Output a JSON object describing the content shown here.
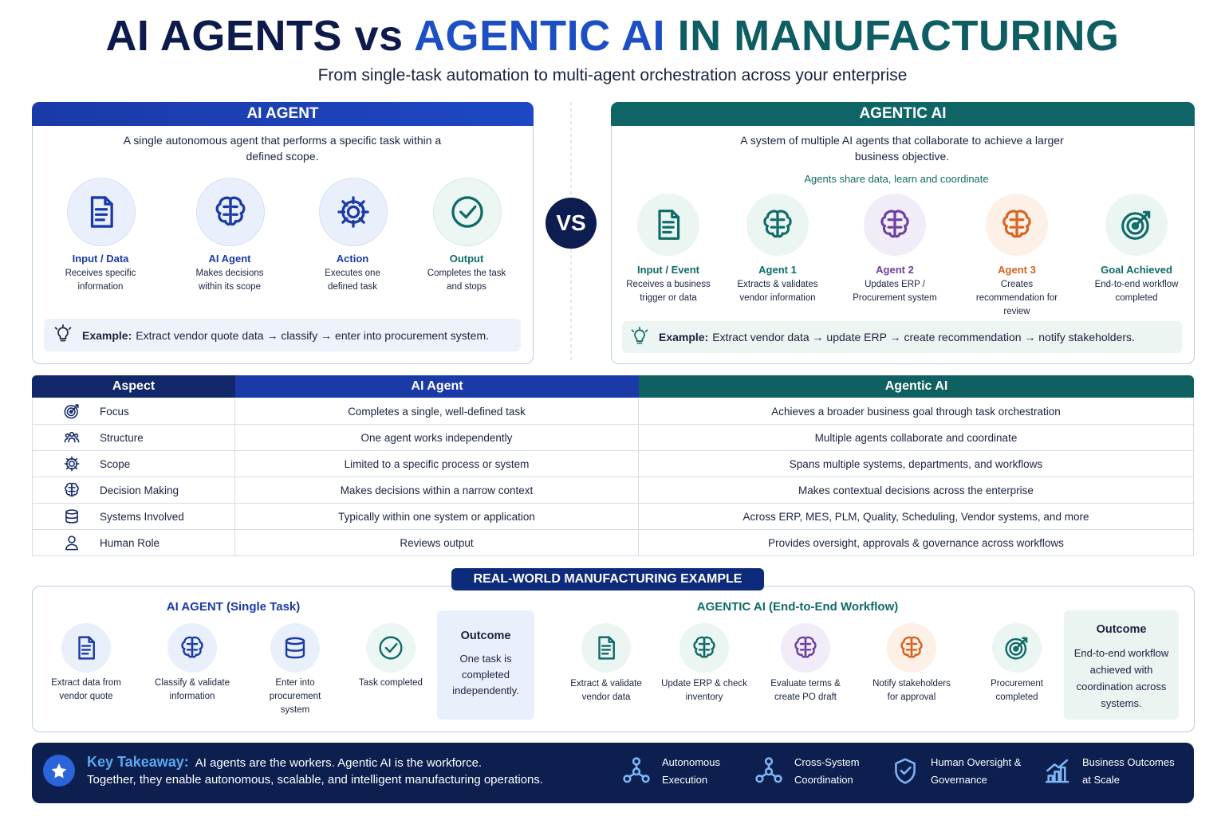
{
  "header": {
    "title_part1": "AI AGENTS",
    "title_vs": "vs",
    "title_part2": "AGENTIC AI",
    "title_part3": "IN MANUFACTURING",
    "subtitle": "From single-task automation to multi-agent orchestration across your enterprise"
  },
  "ai_agent_panel": {
    "title": "AI AGENT",
    "description": "A single autonomous agent that performs a specific task within a defined scope.",
    "steps": [
      {
        "label": "Input / Data",
        "text": "Receives specific information"
      },
      {
        "label": "AI Agent",
        "text": "Makes decisions within its scope"
      },
      {
        "label": "Action",
        "text": "Executes one defined task"
      },
      {
        "label": "Output",
        "text": "Completes the task and stops"
      }
    ],
    "example_label": "Example:",
    "example": "Extract vendor quote data → classify → enter into procurement system."
  },
  "vs": "VS",
  "agentic_panel": {
    "title": "AGENTIC AI",
    "description": "A system of multiple AI agents that collaborate to achieve a larger business objective.",
    "banner": "Agents share data, learn and coordinate",
    "steps": [
      {
        "label": "Input / Event",
        "text": "Receives a business trigger or data"
      },
      {
        "label": "Agent 1",
        "text": "Extracts & validates vendor information"
      },
      {
        "label": "Agent 2",
        "text": "Updates ERP / Procurement system"
      },
      {
        "label": "Agent 3",
        "text": "Creates recommendation for review"
      },
      {
        "label": "Goal Achieved",
        "text": "End-to-end workflow completed"
      }
    ],
    "example_label": "Example:",
    "example": "Extract vendor data → update ERP → create recommendation → notify stakeholders."
  },
  "comparison": {
    "headers": [
      "Aspect",
      "AI Agent",
      "Agentic AI"
    ],
    "rows": [
      [
        "Focus",
        "Completes a single, well-defined task",
        "Achieves a broader business goal through task orchestration"
      ],
      [
        "Structure",
        "One agent works independently",
        "Multiple agents collaborate and coordinate"
      ],
      [
        "Scope",
        "Limited to a specific process or system",
        "Spans multiple systems, departments, and workflows"
      ],
      [
        "Decision Making",
        "Makes decisions within a narrow context",
        "Makes contextual decisions across the enterprise"
      ],
      [
        "Systems Involved",
        "Typically within one system or application",
        "Across ERP, MES, PLM, Quality, Scheduling, Vendor systems, and more"
      ],
      [
        "Human Role",
        "Reviews output",
        "Provides oversight, approvals & governance across workflows"
      ]
    ]
  },
  "example_section": {
    "title": "REAL-WORLD MANUFACTURING EXAMPLE",
    "left": {
      "title": "AI AGENT (Single Task)",
      "steps": [
        "Extract data from vendor quote",
        "Classify & validate information",
        "Enter into procurement system",
        "Task completed"
      ],
      "outcome_title": "Outcome",
      "outcome": "One task is completed independently."
    },
    "right": {
      "title": "AGENTIC AI (End-to-End Workflow)",
      "steps": [
        "Extract & validate vendor data",
        "Update ERP & check inventory",
        "Evaluate terms & create PO draft",
        "Notify stakeholders for approval",
        "Procurement completed"
      ],
      "outcome_title": "Outcome",
      "outcome": "End-to-end workflow achieved with coordination across systems."
    }
  },
  "takeaway": {
    "label": "Key Takeaway:",
    "line1": "AI agents are the workers. Agentic AI is the workforce.",
    "line2": "Together, they enable autonomous, scalable, and intelligent manufacturing operations.",
    "features": [
      "Autonomous Execution",
      "Cross-System Coordination",
      "Human Oversight & Governance",
      "Business Outcomes at Scale"
    ]
  }
}
